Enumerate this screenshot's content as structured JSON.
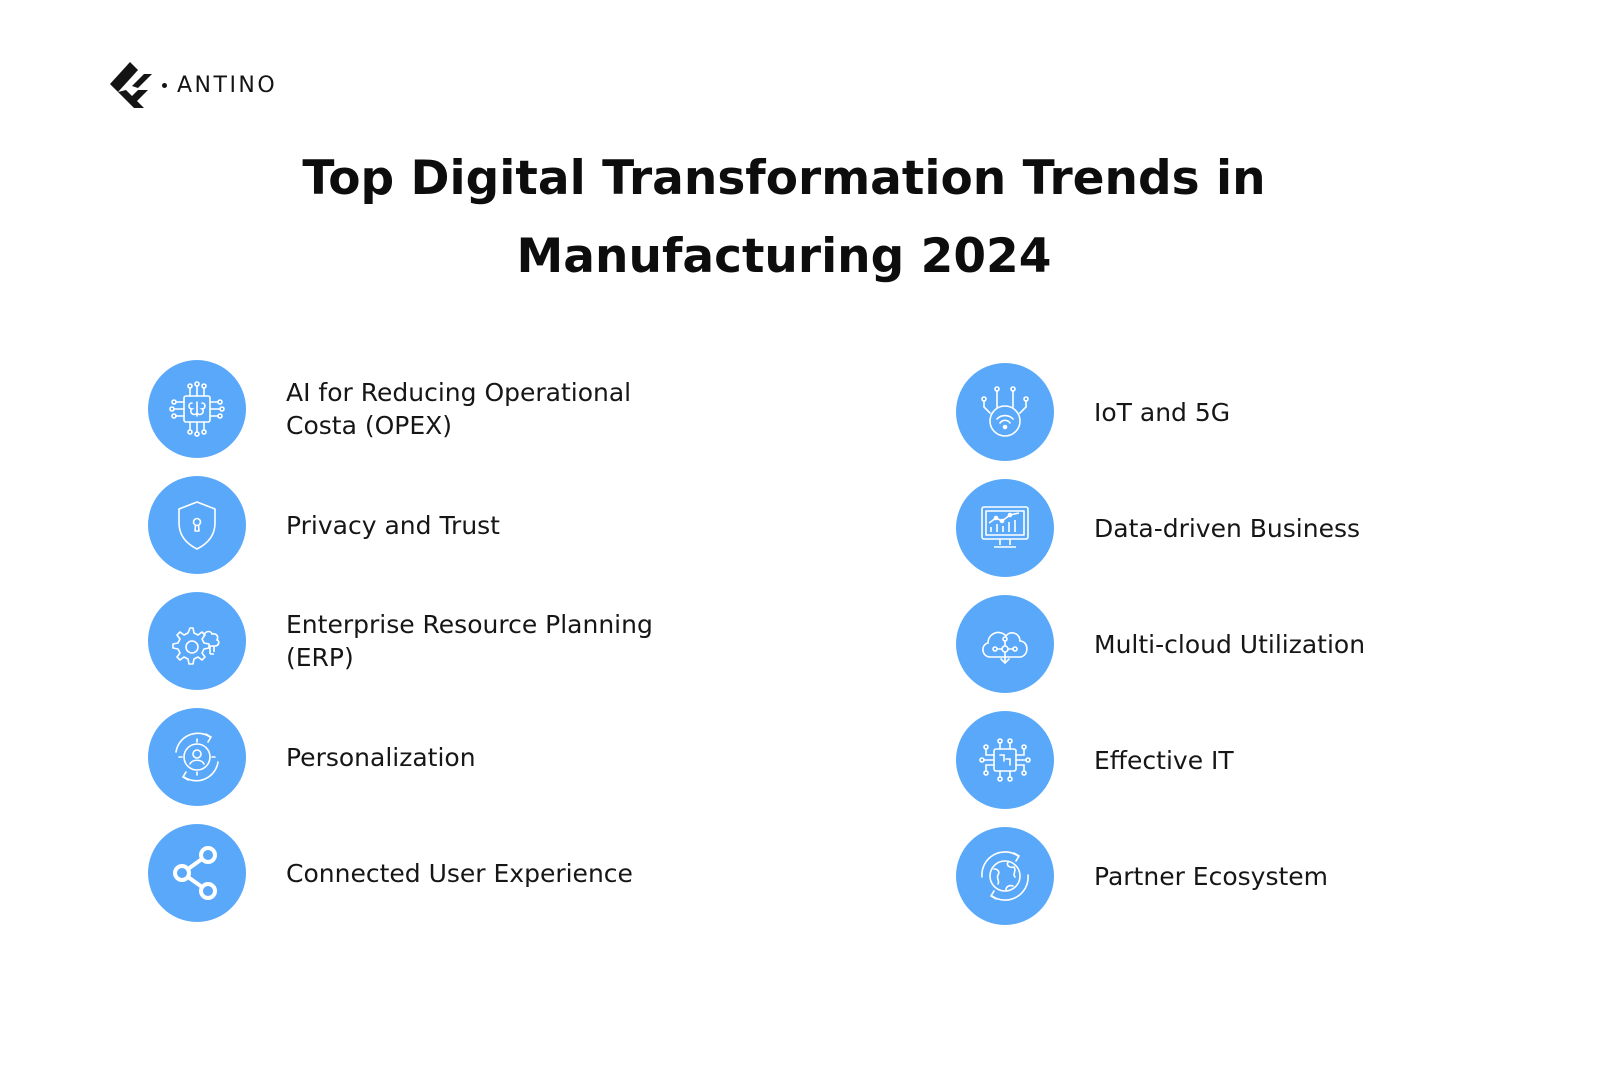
{
  "brand": {
    "name": "ANTINO",
    "logo_icon": "antino-chevron-logo"
  },
  "title": {
    "line1": "Top Digital Transformation Trends in",
    "line2": "Manufacturing 2024"
  },
  "colors": {
    "icon_circle": "#5aa8f9",
    "icon_stroke": "#ffffff",
    "text": "#161616"
  },
  "trends_left": [
    {
      "label": "AI for Reducing Operational Costa (OPEX)",
      "icon": "ai-brain-circuit-icon"
    },
    {
      "label": "Privacy and Trust",
      "icon": "shield-lock-icon"
    },
    {
      "label": "Enterprise Resource Planning (ERP)",
      "icon": "gear-cloud-icon"
    },
    {
      "label": "Personalization",
      "icon": "user-gear-cycle-icon"
    },
    {
      "label": "Connected User Experience",
      "icon": "share-network-icon"
    }
  ],
  "trends_right": [
    {
      "label": "IoT and 5G",
      "icon": "wifi-iot-icon"
    },
    {
      "label": "Data-driven Business",
      "icon": "monitor-chart-icon"
    },
    {
      "label": "Multi-cloud Utilization",
      "icon": "cloud-network-icon"
    },
    {
      "label": "Effective IT",
      "icon": "chip-circuit-icon"
    },
    {
      "label": "Partner Ecosystem",
      "icon": "globe-cycle-icon"
    }
  ]
}
